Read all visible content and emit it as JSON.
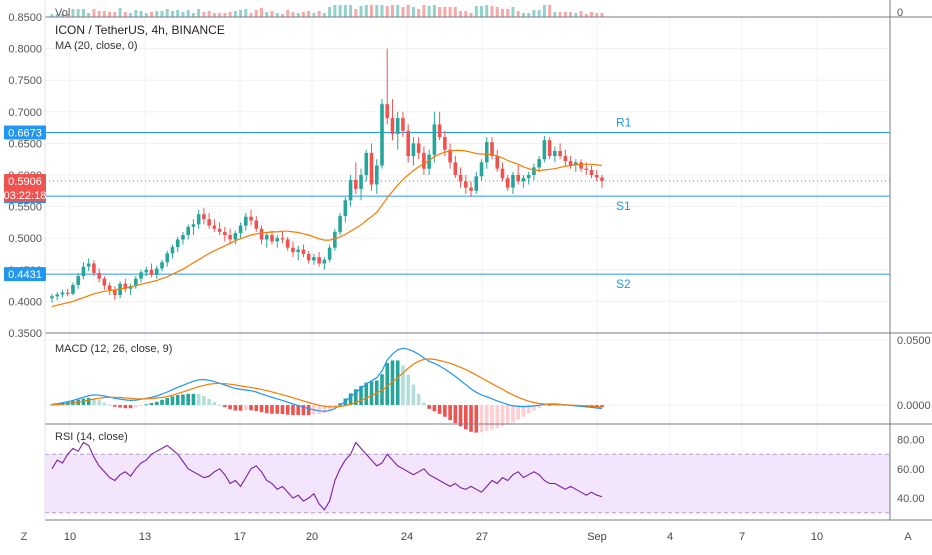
{
  "legend": {
    "vol": "Vol",
    "symbol": "ICON / TetherUS, 4h, BINANCE",
    "ma": "MA (20, close, 0)",
    "macd": "MACD (12, 26, close, 9)",
    "rsi": "RSI (14, close)"
  },
  "levels": [
    {
      "name": "R1",
      "value": 0.6673,
      "label": "0.6673"
    },
    {
      "name": "S1",
      "value": 0.5665,
      "label": "0.5665"
    },
    {
      "name": "S2",
      "value": 0.4431,
      "label": "0.4431"
    }
  ],
  "price_tag": {
    "value": 0.5906,
    "label": "0.5906",
    "countdown": "03:22:18"
  },
  "time_axis": [
    "10",
    "13",
    "17",
    "20",
    "24",
    "27",
    "Sep",
    "4",
    "7",
    "10"
  ],
  "corner_buttons": {
    "left": "Z",
    "right": "A"
  },
  "colors": {
    "up": "#26a69a",
    "down": "#ef5350",
    "ma": "#f57c00",
    "macd": "#2196f3",
    "signal": "#f57c00",
    "rsi": "#7b1fa2",
    "level": "#2196f3"
  },
  "chart_data": [
    {
      "type": "candlestick",
      "title": "ICON / TetherUS, 4h, BINANCE",
      "price_axis_ticks": [
        "0.8500",
        "0.8000",
        "0.7500",
        "0.7000",
        "0.6500",
        "0.6000",
        "0.5500",
        "0.5000",
        "0.4500",
        "0.4000",
        "0.3500"
      ],
      "ylim": [
        0.35,
        0.85
      ],
      "ohlc": [
        [
          0.405,
          0.412,
          0.398,
          0.408
        ],
        [
          0.408,
          0.415,
          0.402,
          0.411
        ],
        [
          0.411,
          0.418,
          0.406,
          0.414
        ],
        [
          0.414,
          0.42,
          0.408,
          0.412
        ],
        [
          0.412,
          0.43,
          0.41,
          0.426
        ],
        [
          0.426,
          0.445,
          0.42,
          0.44
        ],
        [
          0.44,
          0.462,
          0.435,
          0.455
        ],
        [
          0.455,
          0.468,
          0.448,
          0.46
        ],
        [
          0.46,
          0.465,
          0.44,
          0.445
        ],
        [
          0.445,
          0.452,
          0.43,
          0.436
        ],
        [
          0.436,
          0.44,
          0.418,
          0.425
        ],
        [
          0.425,
          0.43,
          0.41,
          0.418
        ],
        [
          0.418,
          0.424,
          0.402,
          0.41
        ],
        [
          0.41,
          0.432,
          0.405,
          0.428
        ],
        [
          0.428,
          0.436,
          0.415,
          0.42
        ],
        [
          0.42,
          0.428,
          0.41,
          0.424
        ],
        [
          0.424,
          0.44,
          0.42,
          0.436
        ],
        [
          0.436,
          0.45,
          0.43,
          0.446
        ],
        [
          0.446,
          0.455,
          0.44,
          0.45
        ],
        [
          0.45,
          0.46,
          0.438,
          0.442
        ],
        [
          0.442,
          0.456,
          0.436,
          0.452
        ],
        [
          0.452,
          0.466,
          0.448,
          0.462
        ],
        [
          0.462,
          0.48,
          0.455,
          0.476
        ],
        [
          0.476,
          0.49,
          0.468,
          0.486
        ],
        [
          0.486,
          0.502,
          0.478,
          0.498
        ],
        [
          0.498,
          0.51,
          0.49,
          0.505
        ],
        [
          0.505,
          0.522,
          0.498,
          0.518
        ],
        [
          0.518,
          0.53,
          0.505,
          0.522
        ],
        [
          0.522,
          0.545,
          0.515,
          0.538
        ],
        [
          0.538,
          0.548,
          0.522,
          0.53
        ],
        [
          0.53,
          0.54,
          0.515,
          0.52
        ],
        [
          0.52,
          0.53,
          0.51,
          0.515
        ],
        [
          0.515,
          0.525,
          0.505,
          0.51
        ],
        [
          0.51,
          0.518,
          0.495,
          0.505
        ],
        [
          0.505,
          0.515,
          0.49,
          0.498
        ],
        [
          0.498,
          0.512,
          0.49,
          0.508
        ],
        [
          0.508,
          0.525,
          0.5,
          0.52
        ],
        [
          0.52,
          0.54,
          0.512,
          0.534
        ],
        [
          0.534,
          0.545,
          0.52,
          0.528
        ],
        [
          0.528,
          0.535,
          0.51,
          0.515
        ],
        [
          0.515,
          0.52,
          0.49,
          0.498
        ],
        [
          0.498,
          0.51,
          0.485,
          0.505
        ],
        [
          0.505,
          0.512,
          0.49,
          0.495
        ],
        [
          0.495,
          0.505,
          0.485,
          0.5
        ],
        [
          0.5,
          0.51,
          0.492,
          0.498
        ],
        [
          0.498,
          0.502,
          0.48,
          0.485
        ],
        [
          0.485,
          0.495,
          0.47,
          0.478
        ],
        [
          0.478,
          0.488,
          0.465,
          0.482
        ],
        [
          0.482,
          0.49,
          0.47,
          0.475
        ],
        [
          0.475,
          0.48,
          0.46,
          0.465
        ],
        [
          0.465,
          0.475,
          0.458,
          0.47
        ],
        [
          0.47,
          0.478,
          0.455,
          0.46
        ],
        [
          0.46,
          0.47,
          0.45,
          0.466
        ],
        [
          0.466,
          0.49,
          0.462,
          0.485
        ],
        [
          0.485,
          0.515,
          0.48,
          0.51
        ],
        [
          0.51,
          0.54,
          0.505,
          0.535
        ],
        [
          0.535,
          0.565,
          0.525,
          0.56
        ],
        [
          0.56,
          0.6,
          0.55,
          0.592
        ],
        [
          0.592,
          0.62,
          0.57,
          0.578
        ],
        [
          0.578,
          0.61,
          0.56,
          0.6
        ],
        [
          0.6,
          0.64,
          0.59,
          0.635
        ],
        [
          0.635,
          0.65,
          0.575,
          0.585
        ],
        [
          0.585,
          0.625,
          0.57,
          0.615
        ],
        [
          0.615,
          0.72,
          0.61,
          0.712
        ],
        [
          0.712,
          0.8,
          0.68,
          0.69
        ],
        [
          0.69,
          0.72,
          0.655,
          0.665
        ],
        [
          0.665,
          0.7,
          0.64,
          0.69
        ],
        [
          0.69,
          0.7,
          0.66,
          0.67
        ],
        [
          0.67,
          0.68,
          0.62,
          0.63
        ],
        [
          0.63,
          0.66,
          0.615,
          0.65
        ],
        [
          0.65,
          0.66,
          0.625,
          0.635
        ],
        [
          0.635,
          0.645,
          0.6,
          0.61
        ],
        [
          0.61,
          0.64,
          0.6,
          0.632
        ],
        [
          0.632,
          0.7,
          0.62,
          0.68
        ],
        [
          0.68,
          0.7,
          0.655,
          0.66
        ],
        [
          0.66,
          0.67,
          0.63,
          0.64
        ],
        [
          0.64,
          0.65,
          0.61,
          0.62
        ],
        [
          0.62,
          0.63,
          0.595,
          0.6
        ],
        [
          0.6,
          0.612,
          0.58,
          0.59
        ],
        [
          0.59,
          0.6,
          0.57,
          0.58
        ],
        [
          0.58,
          0.59,
          0.565,
          0.575
        ],
        [
          0.575,
          0.605,
          0.57,
          0.598
        ],
        [
          0.598,
          0.625,
          0.59,
          0.62
        ],
        [
          0.62,
          0.66,
          0.61,
          0.652
        ],
        [
          0.652,
          0.66,
          0.625,
          0.63
        ],
        [
          0.63,
          0.64,
          0.605,
          0.61
        ],
        [
          0.61,
          0.62,
          0.59,
          0.595
        ],
        [
          0.595,
          0.6,
          0.575,
          0.58
        ],
        [
          0.58,
          0.605,
          0.57,
          0.6
        ],
        [
          0.6,
          0.615,
          0.585,
          0.59
        ],
        [
          0.59,
          0.6,
          0.58,
          0.595
        ],
        [
          0.595,
          0.605,
          0.585,
          0.6
        ],
        [
          0.6,
          0.618,
          0.592,
          0.612
        ],
        [
          0.612,
          0.63,
          0.605,
          0.625
        ],
        [
          0.625,
          0.662,
          0.62,
          0.655
        ],
        [
          0.655,
          0.66,
          0.625,
          0.63
        ],
        [
          0.63,
          0.645,
          0.62,
          0.638
        ],
        [
          0.638,
          0.65,
          0.625,
          0.63
        ],
        [
          0.63,
          0.64,
          0.615,
          0.622
        ],
        [
          0.622,
          0.63,
          0.61,
          0.615
        ],
        [
          0.615,
          0.625,
          0.605,
          0.62
        ],
        [
          0.62,
          0.625,
          0.605,
          0.61
        ],
        [
          0.61,
          0.62,
          0.6,
          0.608
        ],
        [
          0.608,
          0.615,
          0.595,
          0.6
        ],
        [
          0.6,
          0.608,
          0.59,
          0.596
        ],
        [
          0.596,
          0.6,
          0.58,
          0.5906
        ]
      ],
      "ma20": [
        0.392,
        0.394,
        0.396,
        0.398,
        0.4,
        0.403,
        0.406,
        0.409,
        0.412,
        0.414,
        0.416,
        0.417,
        0.418,
        0.42,
        0.421,
        0.423,
        0.425,
        0.427,
        0.429,
        0.431,
        0.433,
        0.436,
        0.439,
        0.443,
        0.447,
        0.451,
        0.456,
        0.461,
        0.466,
        0.471,
        0.476,
        0.48,
        0.484,
        0.488,
        0.492,
        0.496,
        0.499,
        0.502,
        0.505,
        0.507,
        0.508,
        0.509,
        0.51,
        0.51,
        0.511,
        0.511,
        0.51,
        0.509,
        0.507,
        0.505,
        0.502,
        0.499,
        0.497,
        0.497,
        0.499,
        0.502,
        0.506,
        0.511,
        0.516,
        0.521,
        0.528,
        0.534,
        0.541,
        0.552,
        0.564,
        0.574,
        0.584,
        0.593,
        0.6,
        0.607,
        0.613,
        0.618,
        0.623,
        0.629,
        0.633,
        0.636,
        0.638,
        0.639,
        0.639,
        0.638,
        0.636,
        0.634,
        0.633,
        0.633,
        0.632,
        0.63,
        0.627,
        0.623,
        0.62,
        0.617,
        0.613,
        0.61,
        0.608,
        0.607,
        0.608,
        0.609,
        0.61,
        0.612,
        0.614,
        0.615,
        0.616,
        0.617,
        0.617,
        0.617,
        0.616,
        0.615
      ]
    },
    {
      "type": "bar",
      "title": "MACD (12, 26, close, 9)",
      "price_axis_ticks": [
        "0.0500",
        "0.0000"
      ],
      "ylim": [
        -0.0145,
        0.0545
      ],
      "macd": [
        0.0005,
        0.001,
        0.0018,
        0.0026,
        0.0036,
        0.0048,
        0.006,
        0.0072,
        0.0078,
        0.0076,
        0.007,
        0.0062,
        0.0052,
        0.0046,
        0.004,
        0.0036,
        0.0038,
        0.0044,
        0.0052,
        0.006,
        0.007,
        0.0084,
        0.01,
        0.0118,
        0.0136,
        0.0152,
        0.0168,
        0.0182,
        0.0194,
        0.0196,
        0.019,
        0.018,
        0.0168,
        0.0154,
        0.014,
        0.0128,
        0.012,
        0.0116,
        0.011,
        0.01,
        0.0086,
        0.0072,
        0.006,
        0.0048,
        0.0036,
        0.0022,
        0.0008,
        -0.0004,
        -0.0016,
        -0.0028,
        -0.0036,
        -0.0044,
        -0.0048,
        -0.0042,
        -0.0026,
        -0.0002,
        0.0028,
        0.0062,
        0.0096,
        0.0128,
        0.0162,
        0.0186,
        0.021,
        0.0262,
        0.0346,
        0.0392,
        0.0424,
        0.0436,
        0.0428,
        0.0412,
        0.039,
        0.0362,
        0.0336,
        0.032,
        0.03,
        0.0276,
        0.0248,
        0.022,
        0.0188,
        0.0156,
        0.0124,
        0.0098,
        0.0078,
        0.0064,
        0.0048,
        0.0032,
        0.0018,
        0.0004,
        -0.0006,
        -0.001,
        -0.0012,
        -0.001,
        -0.0006,
        -0.0002,
        0.0006,
        0.0008,
        0.0008,
        0.0006,
        0.0002,
        -0.0002,
        -0.0006,
        -0.001,
        -0.0014,
        -0.0018,
        -0.0022,
        -0.0026
      ],
      "signal": [
        0.0002,
        0.0004,
        0.0007,
        0.0011,
        0.0016,
        0.0022,
        0.0029,
        0.0038,
        0.0046,
        0.0053,
        0.0058,
        0.006,
        0.006,
        0.0058,
        0.0055,
        0.0051,
        0.0048,
        0.0047,
        0.0048,
        0.005,
        0.0054,
        0.0059,
        0.0066,
        0.0076,
        0.0088,
        0.0101,
        0.0114,
        0.0128,
        0.0141,
        0.0152,
        0.016,
        0.0165,
        0.0166,
        0.0164,
        0.016,
        0.0154,
        0.0147,
        0.0141,
        0.0135,
        0.0128,
        0.012,
        0.0111,
        0.0101,
        0.009,
        0.0079,
        0.0068,
        0.0056,
        0.0044,
        0.0032,
        0.002,
        0.0009,
        -0.0001,
        -0.0009,
        -0.0013,
        -0.0014,
        -0.0011,
        -0.0004,
        0.0006,
        0.002,
        0.0036,
        0.0054,
        0.0072,
        0.0092,
        0.0114,
        0.0144,
        0.0178,
        0.021,
        0.0246,
        0.0282,
        0.0314,
        0.0336,
        0.035,
        0.0354,
        0.035,
        0.0342,
        0.0332,
        0.032,
        0.0306,
        0.029,
        0.0272,
        0.0252,
        0.023,
        0.0208,
        0.0186,
        0.0164,
        0.0142,
        0.012,
        0.0098,
        0.0078,
        0.006,
        0.0044,
        0.003,
        0.002,
        0.0012,
        0.0008,
        0.0006,
        0.0004,
        0.0002,
        0.0001,
        0.0,
        -0.0002,
        -0.0004,
        -0.0006,
        -0.0009,
        -0.0012,
        -0.0015
      ]
    },
    {
      "type": "line",
      "title": "RSI (14, close)",
      "price_axis_ticks": [
        "80.00",
        "60.00",
        "40.00"
      ],
      "ylim": [
        25,
        90
      ],
      "band": [
        30,
        70
      ],
      "rsi": [
        60,
        66,
        64,
        70,
        74,
        72,
        78,
        76,
        68,
        62,
        58,
        54,
        52,
        56,
        58,
        55,
        60,
        64,
        66,
        70,
        72,
        74,
        76,
        73,
        70,
        65,
        60,
        58,
        56,
        54,
        55,
        58,
        60,
        56,
        50,
        52,
        48,
        54,
        60,
        62,
        58,
        52,
        50,
        46,
        48,
        44,
        40,
        42,
        38,
        40,
        43,
        36,
        32,
        38,
        52,
        60,
        66,
        70,
        78,
        74,
        70,
        66,
        62,
        64,
        70,
        66,
        62,
        60,
        58,
        56,
        58,
        60,
        56,
        54,
        52,
        50,
        48,
        50,
        47,
        46,
        48,
        46,
        44,
        48,
        52,
        50,
        54,
        52,
        56,
        58,
        54,
        56,
        58,
        56,
        52,
        50,
        50,
        48,
        46,
        48,
        46,
        44,
        42,
        44,
        42,
        41
      ]
    }
  ]
}
